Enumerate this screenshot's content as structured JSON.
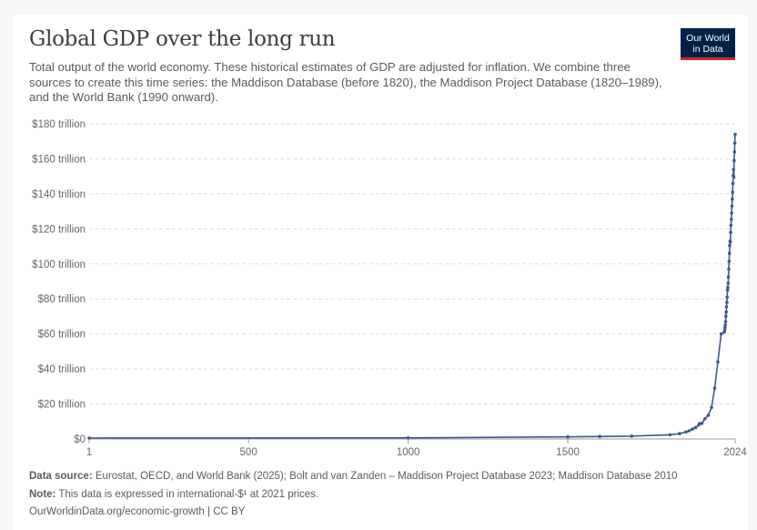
{
  "header": {
    "title": "Global GDP over the long run",
    "subtitle": "Total output of the world economy. These historical estimates of GDP are adjusted for inflation. We combine three sources to create this time series: the Maddison Database (before 1820), the Maddison Project Database (1820–1989), and the World Bank (1990 onward).",
    "logo_line1": "Our World",
    "logo_line2": "in Data"
  },
  "colors": {
    "series": "#3e5a8c",
    "grid": "#dddddd",
    "logo_bg": "#002147",
    "logo_accent": "#ce261e"
  },
  "footer": {
    "source_label": "Data source:",
    "source_text": "Eurostat, OECD, and World Bank (2025); Bolt and van Zanden – Maddison Project Database 2023; Maddison Database 2010",
    "note_label": "Note:",
    "note_text": "This data is expressed in international-$¹ at 2021 prices.",
    "url": "OurWorldinData.org/economic-growth | CC BY"
  },
  "chart_data": {
    "type": "line",
    "title": "Global GDP over the long run",
    "grid": true,
    "xlim": [
      1,
      2024
    ],
    "ylim": [
      0,
      180
    ],
    "x_ticks": [
      1,
      500,
      1000,
      1500,
      2024
    ],
    "x_tick_labels": [
      "1",
      "500",
      "1000",
      "1500",
      "2024"
    ],
    "y_ticks": [
      0,
      20,
      40,
      60,
      80,
      100,
      120,
      140,
      160,
      180
    ],
    "y_tick_labels": [
      "$0",
      "$20 trillion",
      "$40 trillion",
      "$60 trillion",
      "$80 trillion",
      "$100 trillion",
      "$120 trillion",
      "$140 trillion",
      "$160 trillion",
      "$180 trillion"
    ],
    "series": [
      {
        "x": [
          1,
          1000,
          1500,
          1600,
          1700,
          1820,
          1850,
          1870,
          1880,
          1890,
          1900,
          1910,
          1913,
          1920,
          1929,
          1940,
          1950,
          1960,
          1970,
          1980,
          1990,
          1991,
          1992,
          1993,
          1994,
          1995,
          1996,
          1997,
          1998,
          1999,
          2000,
          2001,
          2002,
          2003,
          2004,
          2005,
          2006,
          2007,
          2008,
          2009,
          2010,
          2011,
          2012,
          2013,
          2014,
          2015,
          2016,
          2017,
          2018,
          2019,
          2020,
          2021,
          2022,
          2023,
          2024
        ],
        "y": [
          0.5,
          0.6,
          1.2,
          1.4,
          1.6,
          2.4,
          3.0,
          4.0,
          4.7,
          5.6,
          6.5,
          8.0,
          8.8,
          8.9,
          11.5,
          13.5,
          18.0,
          29.0,
          44.0,
          60.0,
          61.0,
          62.0,
          63.5,
          65.0,
          67.0,
          70.0,
          72.5,
          75.5,
          78.0,
          81.0,
          85.0,
          86.5,
          89.0,
          92.5,
          97.0,
          101.5,
          106.0,
          110.5,
          113.0,
          112.5,
          118.0,
          122.0,
          125.5,
          129.0,
          133.0,
          137.0,
          141.0,
          146.0,
          150.5,
          154.0,
          149.5,
          159.0,
          164.0,
          169.0,
          174.0
        ]
      }
    ]
  }
}
